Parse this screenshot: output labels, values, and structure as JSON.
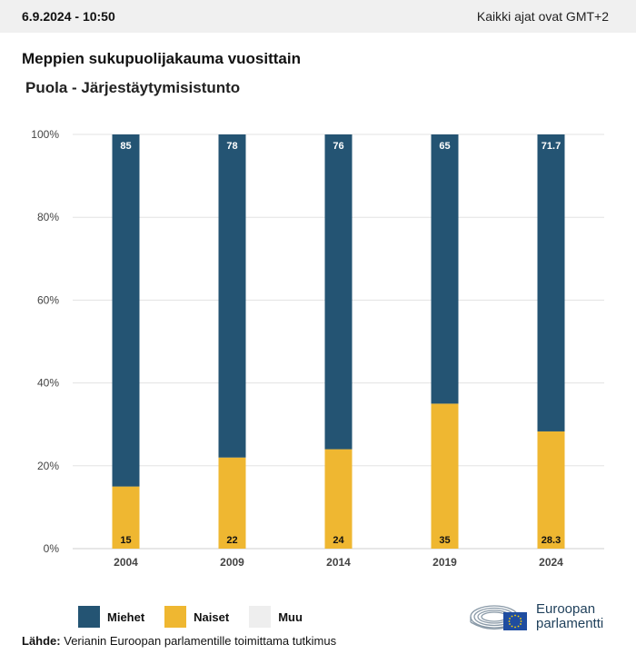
{
  "header": {
    "datetime": "6.9.2024 - 10:50",
    "timezone_note": "Kaikki ajat ovat GMT+2"
  },
  "title": "Meppien sukupuolijakauma vuosittain",
  "subtitle": "Puola - Järjestäytymisistunto",
  "colors": {
    "men": "#245473",
    "women": "#efb731",
    "other": "#eeeeee",
    "grid": "#e3e3e3",
    "axis_text": "#444444"
  },
  "chart_data": {
    "type": "bar",
    "stacked": true,
    "categories": [
      "2004",
      "2009",
      "2014",
      "2019",
      "2024"
    ],
    "series": [
      {
        "name": "Miehet",
        "values": [
          85,
          78,
          76,
          65,
          71.7
        ],
        "labels": [
          "85",
          "78",
          "76",
          "65",
          "71.7"
        ]
      },
      {
        "name": "Naiset",
        "values": [
          15,
          22,
          24,
          35,
          28.3
        ],
        "labels": [
          "15",
          "22",
          "24",
          "35",
          "28.3"
        ]
      },
      {
        "name": "Muu",
        "values": [
          0,
          0,
          0,
          0,
          0
        ]
      }
    ],
    "yticks": [
      "0%",
      "20%",
      "40%",
      "60%",
      "80%",
      "100%"
    ],
    "ylim": [
      0,
      100
    ],
    "grid": true,
    "legend_position": "bottom-left"
  },
  "legend": {
    "men": "Miehet",
    "women": "Naiset",
    "other": "Muu"
  },
  "source": {
    "label": "Lähde:",
    "text": "Verianin Euroopan parlamentille toimittama tutkimus"
  },
  "logo": {
    "line1": "Euroopan",
    "line2": "parlamentti"
  }
}
